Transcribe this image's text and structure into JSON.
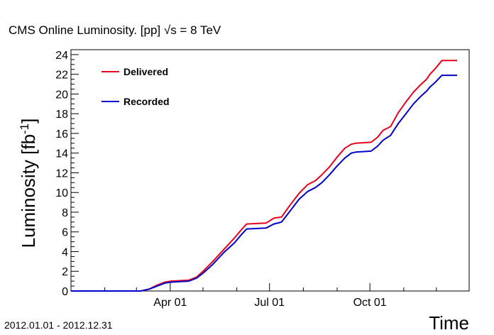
{
  "chart_data": {
    "type": "line",
    "title": "CMS Online Luminosity.  [pp]  √s = 8 TeV",
    "ylabel": "Luminosity [fb",
    "ylabel_sup": "-1",
    "ylabel_close": "]",
    "xlabel": "Time",
    "date_range_note": "2012.01.01 - 2012.12.31",
    "xlim": [
      "2012-01-01",
      "2012-12-31"
    ],
    "ylim": [
      0,
      24.5
    ],
    "yticks": [
      0,
      2,
      4,
      6,
      8,
      10,
      12,
      14,
      16,
      18,
      20,
      22,
      24
    ],
    "xticks": [
      {
        "date": "2012-04-01",
        "label": "Apr 01"
      },
      {
        "date": "2012-07-01",
        "label": "Jul 01"
      },
      {
        "date": "2012-10-01",
        "label": "Oct 01"
      }
    ],
    "legend_position": "top-left",
    "grid": false,
    "series": [
      {
        "name": "Delivered",
        "color": "#e8001c",
        "points": [
          [
            "2012-01-01",
            0
          ],
          [
            "2012-03-05",
            0
          ],
          [
            "2012-03-13",
            0.2
          ],
          [
            "2012-03-20",
            0.6
          ],
          [
            "2012-03-27",
            0.9
          ],
          [
            "2012-04-02",
            1.0
          ],
          [
            "2012-04-18",
            1.1
          ],
          [
            "2012-04-25",
            1.4
          ],
          [
            "2012-05-01",
            2.0
          ],
          [
            "2012-05-10",
            3.0
          ],
          [
            "2012-05-20",
            4.2
          ],
          [
            "2012-05-30",
            5.4
          ],
          [
            "2012-06-05",
            6.2
          ],
          [
            "2012-06-10",
            6.8
          ],
          [
            "2012-06-28",
            6.9
          ],
          [
            "2012-07-05",
            7.4
          ],
          [
            "2012-07-12",
            7.5
          ],
          [
            "2012-07-19",
            8.6
          ],
          [
            "2012-07-28",
            9.9
          ],
          [
            "2012-08-05",
            10.8
          ],
          [
            "2012-08-12",
            11.2
          ],
          [
            "2012-08-18",
            11.8
          ],
          [
            "2012-08-25",
            12.6
          ],
          [
            "2012-09-01",
            13.6
          ],
          [
            "2012-09-08",
            14.5
          ],
          [
            "2012-09-14",
            14.9
          ],
          [
            "2012-09-18",
            15.0
          ],
          [
            "2012-10-02",
            15.1
          ],
          [
            "2012-10-08",
            15.6
          ],
          [
            "2012-10-13",
            16.3
          ],
          [
            "2012-10-20",
            16.7
          ],
          [
            "2012-10-27",
            18.1
          ],
          [
            "2012-11-03",
            19.2
          ],
          [
            "2012-11-10",
            20.2
          ],
          [
            "2012-11-17",
            21.0
          ],
          [
            "2012-11-22",
            21.5
          ],
          [
            "2012-11-25",
            22.0
          ],
          [
            "2012-11-30",
            22.6
          ],
          [
            "2012-12-06",
            23.4
          ],
          [
            "2012-12-20",
            23.4
          ]
        ]
      },
      {
        "name": "Recorded",
        "color": "#0000c8",
        "points": [
          [
            "2012-01-01",
            0
          ],
          [
            "2012-03-05",
            0
          ],
          [
            "2012-03-13",
            0.2
          ],
          [
            "2012-03-20",
            0.5
          ],
          [
            "2012-03-27",
            0.8
          ],
          [
            "2012-04-02",
            0.9
          ],
          [
            "2012-04-18",
            1.0
          ],
          [
            "2012-04-25",
            1.3
          ],
          [
            "2012-05-01",
            1.8
          ],
          [
            "2012-05-10",
            2.7
          ],
          [
            "2012-05-20",
            3.9
          ],
          [
            "2012-05-30",
            4.9
          ],
          [
            "2012-06-05",
            5.7
          ],
          [
            "2012-06-10",
            6.3
          ],
          [
            "2012-06-28",
            6.4
          ],
          [
            "2012-07-05",
            6.8
          ],
          [
            "2012-07-12",
            7.0
          ],
          [
            "2012-07-19",
            8.0
          ],
          [
            "2012-07-28",
            9.3
          ],
          [
            "2012-08-05",
            10.1
          ],
          [
            "2012-08-12",
            10.5
          ],
          [
            "2012-08-18",
            11.0
          ],
          [
            "2012-08-25",
            11.8
          ],
          [
            "2012-09-01",
            12.7
          ],
          [
            "2012-09-08",
            13.5
          ],
          [
            "2012-09-14",
            14.0
          ],
          [
            "2012-09-18",
            14.1
          ],
          [
            "2012-10-02",
            14.2
          ],
          [
            "2012-10-08",
            14.7
          ],
          [
            "2012-10-13",
            15.3
          ],
          [
            "2012-10-20",
            15.8
          ],
          [
            "2012-10-27",
            17.0
          ],
          [
            "2012-11-03",
            18.0
          ],
          [
            "2012-11-10",
            19.0
          ],
          [
            "2012-11-17",
            19.8
          ],
          [
            "2012-11-22",
            20.3
          ],
          [
            "2012-11-25",
            20.7
          ],
          [
            "2012-11-30",
            21.2
          ],
          [
            "2012-12-06",
            21.9
          ],
          [
            "2012-12-20",
            21.9
          ]
        ]
      }
    ]
  }
}
